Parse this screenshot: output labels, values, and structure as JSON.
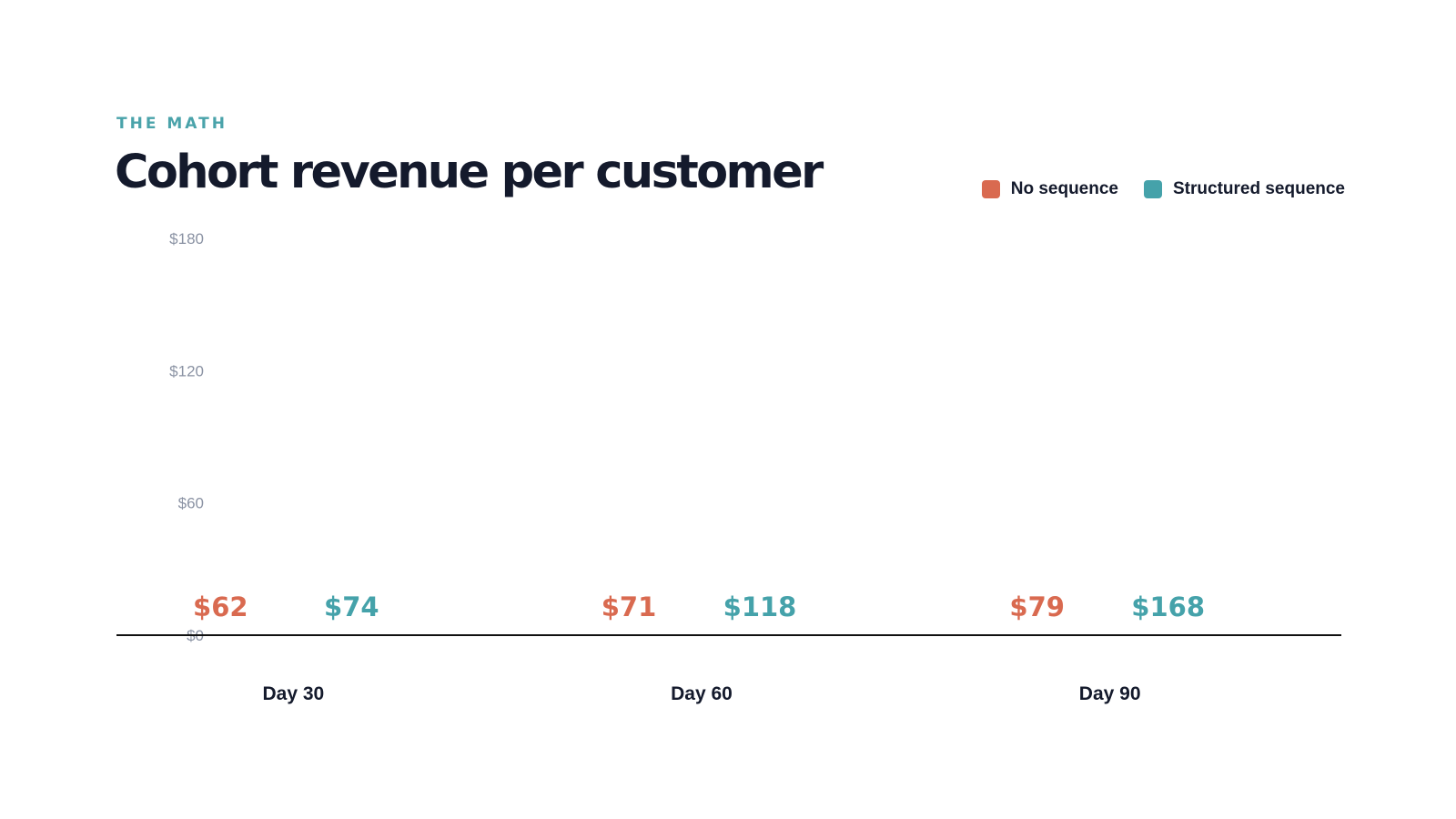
{
  "colors": {
    "accent": "#4aa3aa",
    "no_sequence": "#d96a50",
    "structured_sequence": "#45a2aa",
    "title": "#141a2c",
    "axis_tick": "#8a92a3",
    "category": "#141a2c",
    "axis_line": "#111111"
  },
  "eyebrow": "THE MATH",
  "legend": {
    "items": [
      {
        "label": "No sequence",
        "color": "#d96a50"
      },
      {
        "label": "Structured sequence",
        "color": "#45a2aa"
      }
    ]
  },
  "chart_data": {
    "type": "bar",
    "title": "Cohort revenue per customer",
    "categories": [
      "Day 30",
      "Day 60",
      "Day 90"
    ],
    "series": [
      {
        "name": "No sequence",
        "values": [
          62,
          71,
          79
        ],
        "labels": [
          "$62",
          "$71",
          "$79"
        ],
        "color": "#d96a50"
      },
      {
        "name": "Structured sequence",
        "values": [
          74,
          118,
          168
        ],
        "labels": [
          "$74",
          "$118",
          "$168"
        ],
        "color": "#45a2aa"
      }
    ],
    "yticks": [
      "$0",
      "$60",
      "$120",
      "$180"
    ],
    "ytick_values": [
      0,
      60,
      120,
      180
    ],
    "ylim": [
      0,
      180
    ],
    "grid": false,
    "legend_position": "top-right"
  }
}
